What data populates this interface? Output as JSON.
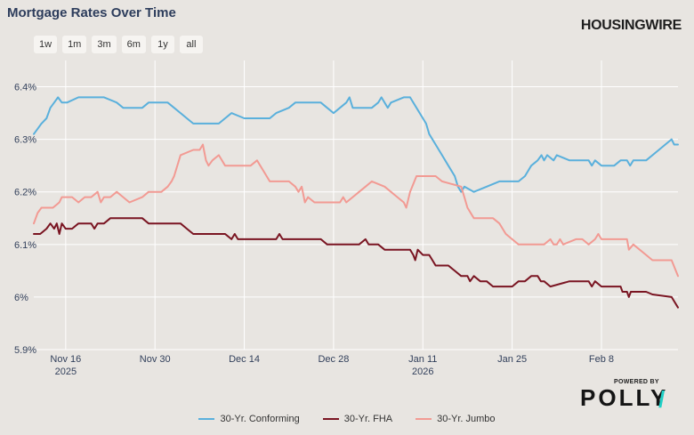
{
  "header": {
    "title": "Mortgage Rates Over Time",
    "brand": "HOUSINGWIRE"
  },
  "range_buttons": [
    "1w",
    "1m",
    "3m",
    "6m",
    "1y",
    "all"
  ],
  "footer": {
    "powered_by": "POWERED BY",
    "logo": "POLLY",
    "logo_slash": "/"
  },
  "colors": {
    "background": "#e8e5e1",
    "grid": "#ffffff",
    "axis_text": "#33415c",
    "conforming": "#5ab0dc",
    "fha": "#7a1522",
    "jumbo": "#f29a93"
  },
  "chart_data": {
    "type": "line",
    "title": "Mortgage Rates Over Time",
    "xlabel": "",
    "ylabel": "",
    "xlim": [
      0,
      101
    ],
    "ylim": [
      5.9,
      6.45
    ],
    "y_ticks": [
      {
        "value": 5.9,
        "label": "5.9%"
      },
      {
        "value": 6.0,
        "label": "6%"
      },
      {
        "value": 6.1,
        "label": "6.1%"
      },
      {
        "value": 6.2,
        "label": "6.2%"
      },
      {
        "value": 6.3,
        "label": "6.3%"
      },
      {
        "value": 6.4,
        "label": "6.4%"
      }
    ],
    "x_ticks": [
      {
        "day": 5,
        "label": "Nov 16",
        "sublabel": "2025"
      },
      {
        "day": 19,
        "label": "Nov 30",
        "sublabel": ""
      },
      {
        "day": 33,
        "label": "Dec 14",
        "sublabel": ""
      },
      {
        "day": 47,
        "label": "Dec 28",
        "sublabel": ""
      },
      {
        "day": 61,
        "label": "Jan 11",
        "sublabel": "2026"
      },
      {
        "day": 75,
        "label": "Jan 25",
        "sublabel": ""
      },
      {
        "day": 89,
        "label": "Feb 8",
        "sublabel": ""
      }
    ],
    "grid": true,
    "legend_position": "bottom",
    "series": [
      {
        "name": "30-Yr. Conforming",
        "color": "#5ab0dc",
        "points": [
          [
            0,
            6.31
          ],
          [
            0.6,
            6.32
          ],
          [
            1.2,
            6.33
          ],
          [
            2,
            6.34
          ],
          [
            2.6,
            6.36
          ],
          [
            3.2,
            6.37
          ],
          [
            3.8,
            6.38
          ],
          [
            4.4,
            6.37
          ],
          [
            5.2,
            6.37
          ],
          [
            7,
            6.38
          ],
          [
            11,
            6.38
          ],
          [
            13,
            6.37
          ],
          [
            14,
            6.36
          ],
          [
            17,
            6.36
          ],
          [
            18,
            6.37
          ],
          [
            21,
            6.37
          ],
          [
            22,
            6.36
          ],
          [
            23,
            6.35
          ],
          [
            24,
            6.34
          ],
          [
            25,
            6.33
          ],
          [
            29,
            6.33
          ],
          [
            30,
            6.34
          ],
          [
            31,
            6.35
          ],
          [
            33,
            6.34
          ],
          [
            37,
            6.34
          ],
          [
            38,
            6.35
          ],
          [
            40,
            6.36
          ],
          [
            41,
            6.37
          ],
          [
            45,
            6.37
          ],
          [
            46,
            6.36
          ],
          [
            47,
            6.35
          ],
          [
            48,
            6.36
          ],
          [
            49,
            6.37
          ],
          [
            49.5,
            6.38
          ],
          [
            50,
            6.36
          ],
          [
            53,
            6.36
          ],
          [
            54,
            6.37
          ],
          [
            54.5,
            6.38
          ],
          [
            55.5,
            6.36
          ],
          [
            56,
            6.37
          ],
          [
            58,
            6.38
          ],
          [
            59,
            6.38
          ],
          [
            60,
            6.36
          ],
          [
            61,
            6.34
          ],
          [
            61.5,
            6.33
          ],
          [
            62,
            6.31
          ],
          [
            63,
            6.29
          ],
          [
            64,
            6.27
          ],
          [
            65,
            6.25
          ],
          [
            66,
            6.23
          ],
          [
            66.5,
            6.21
          ],
          [
            67,
            6.2
          ],
          [
            67.5,
            6.21
          ],
          [
            69,
            6.2
          ],
          [
            71,
            6.21
          ],
          [
            73,
            6.22
          ],
          [
            76,
            6.22
          ],
          [
            77,
            6.23
          ],
          [
            78,
            6.25
          ],
          [
            79,
            6.26
          ],
          [
            79.6,
            6.27
          ],
          [
            80,
            6.26
          ],
          [
            80.5,
            6.27
          ],
          [
            81.5,
            6.26
          ],
          [
            82,
            6.27
          ],
          [
            84,
            6.26
          ],
          [
            87,
            6.26
          ],
          [
            87.5,
            6.25
          ],
          [
            88,
            6.26
          ],
          [
            89,
            6.25
          ],
          [
            91,
            6.25
          ],
          [
            92,
            6.26
          ],
          [
            93,
            6.26
          ],
          [
            93.5,
            6.25
          ],
          [
            94,
            6.26
          ],
          [
            95,
            6.26
          ],
          [
            96,
            6.26
          ],
          [
            98,
            6.28
          ],
          [
            100,
            6.3
          ],
          [
            100.4,
            6.29
          ],
          [
            101,
            6.29
          ]
        ]
      },
      {
        "name": "30-Yr. FHA",
        "color": "#7a1522",
        "points": [
          [
            0,
            6.12
          ],
          [
            1,
            6.12
          ],
          [
            2,
            6.13
          ],
          [
            2.6,
            6.14
          ],
          [
            3.2,
            6.13
          ],
          [
            3.6,
            6.14
          ],
          [
            4,
            6.12
          ],
          [
            4.4,
            6.14
          ],
          [
            5,
            6.13
          ],
          [
            6,
            6.13
          ],
          [
            7,
            6.14
          ],
          [
            9,
            6.14
          ],
          [
            9.5,
            6.13
          ],
          [
            10,
            6.14
          ],
          [
            11,
            6.14
          ],
          [
            12,
            6.15
          ],
          [
            17,
            6.15
          ],
          [
            18,
            6.14
          ],
          [
            23,
            6.14
          ],
          [
            24,
            6.13
          ],
          [
            25,
            6.12
          ],
          [
            30,
            6.12
          ],
          [
            31,
            6.11
          ],
          [
            31.5,
            6.12
          ],
          [
            32,
            6.11
          ],
          [
            38,
            6.11
          ],
          [
            38.5,
            6.12
          ],
          [
            39,
            6.11
          ],
          [
            45,
            6.11
          ],
          [
            46,
            6.1
          ],
          [
            51,
            6.1
          ],
          [
            52,
            6.11
          ],
          [
            52.5,
            6.1
          ],
          [
            54,
            6.1
          ],
          [
            55,
            6.09
          ],
          [
            59,
            6.09
          ],
          [
            59.5,
            6.08
          ],
          [
            59.8,
            6.07
          ],
          [
            60.2,
            6.09
          ],
          [
            61,
            6.08
          ],
          [
            62,
            6.08
          ],
          [
            62.5,
            6.07
          ],
          [
            63,
            6.06
          ],
          [
            65,
            6.06
          ],
          [
            66,
            6.05
          ],
          [
            67,
            6.04
          ],
          [
            68,
            6.04
          ],
          [
            68.4,
            6.03
          ],
          [
            69,
            6.04
          ],
          [
            70,
            6.03
          ],
          [
            71,
            6.03
          ],
          [
            72,
            6.02
          ],
          [
            75,
            6.02
          ],
          [
            76,
            6.03
          ],
          [
            77,
            6.03
          ],
          [
            78,
            6.04
          ],
          [
            79,
            6.04
          ],
          [
            79.5,
            6.03
          ],
          [
            80,
            6.03
          ],
          [
            81,
            6.02
          ],
          [
            84,
            6.03
          ],
          [
            87,
            6.03
          ],
          [
            87.5,
            6.02
          ],
          [
            88,
            6.03
          ],
          [
            89,
            6.02
          ],
          [
            92,
            6.02
          ],
          [
            92.3,
            6.01
          ],
          [
            93,
            6.01
          ],
          [
            93.3,
            6.0
          ],
          [
            93.6,
            6.01
          ],
          [
            96,
            6.01
          ],
          [
            97,
            6.005
          ],
          [
            100,
            6.0
          ],
          [
            101,
            5.98
          ]
        ]
      },
      {
        "name": "30-Yr. Jumbo",
        "color": "#f29a93",
        "points": [
          [
            0,
            6.14
          ],
          [
            0.6,
            6.16
          ],
          [
            1.2,
            6.17
          ],
          [
            3,
            6.17
          ],
          [
            4,
            6.18
          ],
          [
            4.4,
            6.19
          ],
          [
            5,
            6.19
          ],
          [
            6,
            6.19
          ],
          [
            7,
            6.18
          ],
          [
            8,
            6.19
          ],
          [
            9,
            6.19
          ],
          [
            10,
            6.2
          ],
          [
            10.5,
            6.18
          ],
          [
            11,
            6.19
          ],
          [
            12,
            6.19
          ],
          [
            13,
            6.2
          ],
          [
            14,
            6.19
          ],
          [
            15,
            6.18
          ],
          [
            17,
            6.19
          ],
          [
            18,
            6.2
          ],
          [
            19,
            6.2
          ],
          [
            20,
            6.2
          ],
          [
            21,
            6.21
          ],
          [
            21.6,
            6.22
          ],
          [
            22,
            6.23
          ],
          [
            23,
            6.27
          ],
          [
            25,
            6.28
          ],
          [
            26,
            6.28
          ],
          [
            26.5,
            6.29
          ],
          [
            27,
            6.26
          ],
          [
            27.4,
            6.25
          ],
          [
            28,
            6.26
          ],
          [
            29,
            6.27
          ],
          [
            30,
            6.25
          ],
          [
            34,
            6.25
          ],
          [
            35,
            6.26
          ],
          [
            36,
            6.24
          ],
          [
            37,
            6.22
          ],
          [
            40,
            6.22
          ],
          [
            41,
            6.21
          ],
          [
            41.5,
            6.2
          ],
          [
            42,
            6.21
          ],
          [
            42.5,
            6.18
          ],
          [
            43,
            6.19
          ],
          [
            44,
            6.18
          ],
          [
            48,
            6.18
          ],
          [
            48.5,
            6.19
          ],
          [
            49,
            6.18
          ],
          [
            50,
            6.19
          ],
          [
            51,
            6.2
          ],
          [
            52,
            6.21
          ],
          [
            53,
            6.22
          ],
          [
            55,
            6.21
          ],
          [
            57,
            6.19
          ],
          [
            58,
            6.18
          ],
          [
            58.4,
            6.17
          ],
          [
            59,
            6.2
          ],
          [
            60,
            6.23
          ],
          [
            63,
            6.23
          ],
          [
            64,
            6.22
          ],
          [
            67,
            6.21
          ],
          [
            67.5,
            6.19
          ],
          [
            68,
            6.17
          ],
          [
            69,
            6.15
          ],
          [
            72,
            6.15
          ],
          [
            73,
            6.14
          ],
          [
            74,
            6.12
          ],
          [
            75,
            6.11
          ],
          [
            76,
            6.1
          ],
          [
            80,
            6.1
          ],
          [
            81,
            6.11
          ],
          [
            81.5,
            6.1
          ],
          [
            82,
            6.1
          ],
          [
            82.5,
            6.11
          ],
          [
            83,
            6.1
          ],
          [
            85,
            6.11
          ],
          [
            86,
            6.11
          ],
          [
            87,
            6.1
          ],
          [
            88,
            6.11
          ],
          [
            88.5,
            6.12
          ],
          [
            89,
            6.11
          ],
          [
            93,
            6.11
          ],
          [
            93.3,
            6.09
          ],
          [
            94,
            6.1
          ],
          [
            96,
            6.08
          ],
          [
            97,
            6.07
          ],
          [
            100,
            6.07
          ],
          [
            101,
            6.04
          ]
        ]
      }
    ]
  }
}
